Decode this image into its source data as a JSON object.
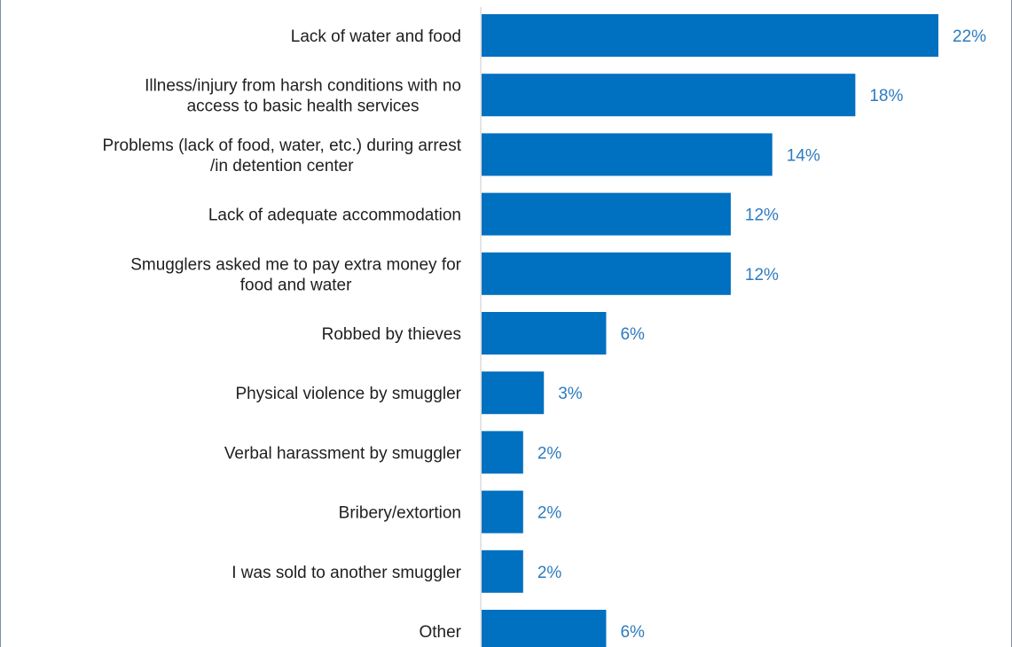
{
  "colors": {
    "bar": "#0070c0",
    "value_label": "#2e7bbf",
    "axis": "#c8c8c8"
  },
  "chart_data": {
    "type": "bar",
    "orientation": "horizontal",
    "categories": [
      [
        "Lack of water and food"
      ],
      [
        "Illness/injury from harsh conditions with no",
        "access to basic health services"
      ],
      [
        "Problems (lack of food, water, etc.) during arrest",
        "/in detention center"
      ],
      [
        "Lack of adequate accommodation"
      ],
      [
        "Smugglers asked me to pay extra money for",
        "food and water"
      ],
      [
        "Robbed by thieves"
      ],
      [
        "Physical violence by smuggler"
      ],
      [
        "Verbal harassment by smuggler"
      ],
      [
        "Bribery/extortion"
      ],
      [
        "I was sold to another smuggler"
      ],
      [
        "Other"
      ]
    ],
    "values": [
      22,
      18,
      14,
      12,
      12,
      6,
      3,
      2,
      2,
      2,
      6
    ],
    "value_labels": [
      "22%",
      "18%",
      "14%",
      "12%",
      "12%",
      "6%",
      "3%",
      "2%",
      "2%",
      "2%",
      "6%"
    ],
    "value_unit": "%",
    "xlim": [
      0,
      22
    ],
    "grid": false,
    "legend": "none"
  }
}
